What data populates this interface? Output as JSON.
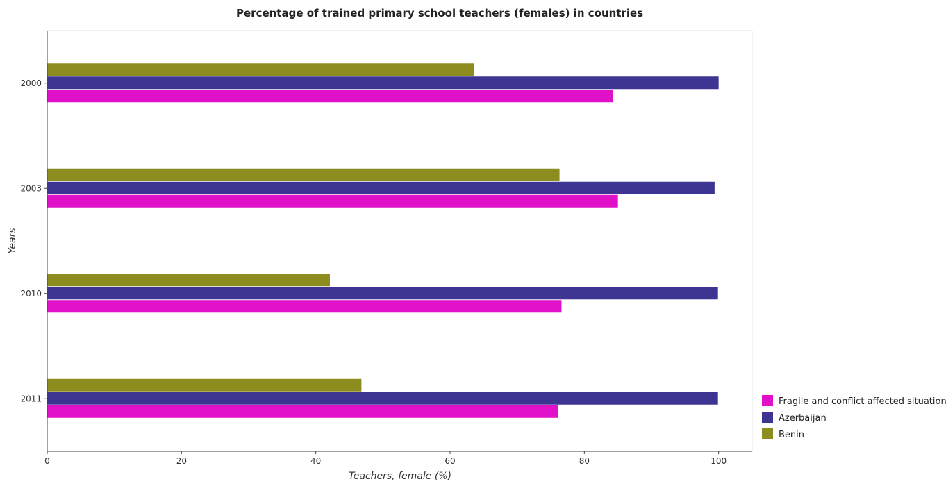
{
  "chart_data": {
    "type": "bar",
    "orientation": "horizontal",
    "title": "Percentage of trained primary school teachers (females) in countries",
    "xlabel": "Teachers, female (%)",
    "ylabel": "Years",
    "xlim": [
      0,
      105
    ],
    "xticks": [
      0,
      20,
      40,
      60,
      80,
      100
    ],
    "categories": [
      "2000",
      "2003",
      "2010",
      "2011"
    ],
    "series": [
      {
        "name": "Fragile and conflict affected situations",
        "color": "#e011c8",
        "values": [
          84.3,
          85.0,
          76.6,
          76.1
        ]
      },
      {
        "name": "Azerbaijan",
        "color": "#3d3591",
        "values": [
          100.0,
          99.4,
          99.9,
          99.9
        ]
      },
      {
        "name": "Benin",
        "color": "#8d8d1f",
        "values": [
          63.6,
          76.3,
          42.1,
          46.8
        ]
      }
    ],
    "legend_position": "bottom-right",
    "grid": false
  }
}
